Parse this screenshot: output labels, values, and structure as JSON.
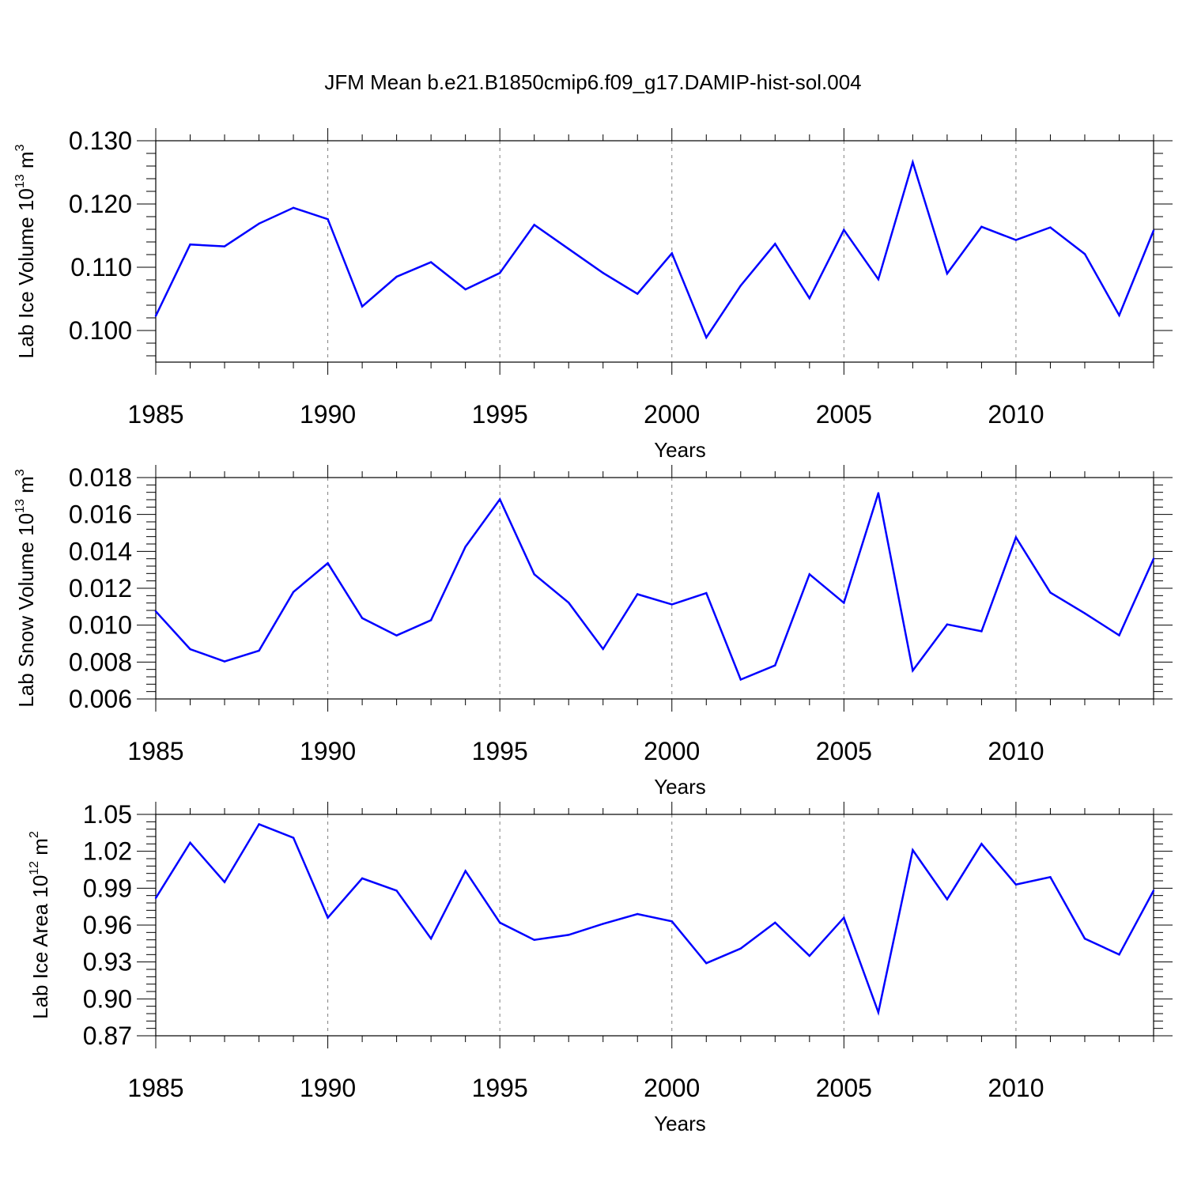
{
  "title": "JFM Mean b.e21.B1850cmip6.f09_g17.DAMIP-hist-sol.004",
  "colors": {
    "series": "#0000ff",
    "axis": "#000000",
    "grid": "#808080"
  },
  "chart_data": [
    {
      "type": "line",
      "ylabel_main": "Lab Ice Volume 10",
      "ylabel_exp": "13",
      "ylabel_unit": " m",
      "ylabel_unit_exp": "3",
      "xlabel": "Years",
      "xlim": [
        1985,
        2014
      ],
      "ylim": [
        0.095,
        0.13
      ],
      "yticks": [
        0.1,
        0.11,
        0.12,
        0.13
      ],
      "ytick_labels": [
        "0.100",
        "0.110",
        "0.120",
        "0.130"
      ],
      "xticks": [
        1985,
        1990,
        1995,
        2000,
        2005,
        2010
      ],
      "xtick_labels": [
        "1985",
        "1990",
        "1995",
        "2000",
        "2005",
        "2010"
      ],
      "grid": "vertical dashed at major x ticks",
      "x": [
        1985,
        1986,
        1987,
        1988,
        1989,
        1990,
        1991,
        1992,
        1993,
        1994,
        1995,
        1996,
        1997,
        1998,
        1999,
        2000,
        2001,
        2002,
        2003,
        2004,
        2005,
        2006,
        2007,
        2008,
        2009,
        2010,
        2011,
        2012,
        2013,
        2014
      ],
      "values": [
        0.1023,
        0.1136,
        0.1133,
        0.1169,
        0.1194,
        0.1176,
        0.1038,
        0.1085,
        0.1108,
        0.1065,
        0.1091,
        0.1167,
        0.1129,
        0.1091,
        0.1058,
        0.1122,
        0.0989,
        0.1071,
        0.1137,
        0.1051,
        0.1159,
        0.1081,
        0.1266,
        0.109,
        0.1164,
        0.1143,
        0.1163,
        0.1121,
        0.1024,
        0.1158
      ]
    },
    {
      "type": "line",
      "ylabel_main": "Lab Snow Volume 10",
      "ylabel_exp": "13",
      "ylabel_unit": " m",
      "ylabel_unit_exp": "3",
      "xlabel": "Years",
      "xlim": [
        1985,
        2014
      ],
      "ylim": [
        0.006,
        0.018
      ],
      "yticks": [
        0.006,
        0.008,
        0.01,
        0.012,
        0.014,
        0.016,
        0.018
      ],
      "ytick_labels": [
        "0.006",
        "0.008",
        "0.010",
        "0.012",
        "0.014",
        "0.016",
        "0.018"
      ],
      "xticks": [
        1985,
        1990,
        1995,
        2000,
        2005,
        2010
      ],
      "xtick_labels": [
        "1985",
        "1990",
        "1995",
        "2000",
        "2005",
        "2010"
      ],
      "grid": "vertical dashed at major x ticks",
      "x": [
        1985,
        1986,
        1987,
        1988,
        1989,
        1990,
        1991,
        1992,
        1993,
        1994,
        1995,
        1996,
        1997,
        1998,
        1999,
        2000,
        2001,
        2002,
        2003,
        2004,
        2005,
        2006,
        2007,
        2008,
        2009,
        2010,
        2011,
        2012,
        2013,
        2014
      ],
      "values": [
        0.01075,
        0.0087,
        0.00803,
        0.00862,
        0.0118,
        0.01336,
        0.01038,
        0.00944,
        0.01027,
        0.01425,
        0.01682,
        0.01276,
        0.01122,
        0.00871,
        0.01168,
        0.01112,
        0.01174,
        0.00705,
        0.00782,
        0.01276,
        0.01121,
        0.01716,
        0.00754,
        0.01004,
        0.00967,
        0.01476,
        0.01177,
        0.01064,
        0.00945,
        0.0136
      ]
    },
    {
      "type": "line",
      "ylabel_main": "Lab Ice Area 10",
      "ylabel_exp": "12",
      "ylabel_unit": " m",
      "ylabel_unit_exp": "2",
      "xlabel": "Years",
      "xlim": [
        1985,
        2014
      ],
      "ylim": [
        0.87,
        1.05
      ],
      "yticks": [
        0.87,
        0.9,
        0.93,
        0.96,
        0.99,
        1.02,
        1.05
      ],
      "ytick_labels": [
        "0.87",
        "0.90",
        "0.93",
        "0.96",
        "0.99",
        "1.02",
        "1.05"
      ],
      "xticks": [
        1985,
        1990,
        1995,
        2000,
        2005,
        2010
      ],
      "xtick_labels": [
        "1985",
        "1990",
        "1995",
        "2000",
        "2005",
        "2010"
      ],
      "grid": "vertical dashed at major x ticks",
      "x": [
        1985,
        1986,
        1987,
        1988,
        1989,
        1990,
        1991,
        1992,
        1993,
        1994,
        1995,
        1996,
        1997,
        1998,
        1999,
        2000,
        2001,
        2002,
        2003,
        2004,
        2005,
        2006,
        2007,
        2008,
        2009,
        2010,
        2011,
        2012,
        2013,
        2014
      ],
      "values": [
        0.982,
        1.027,
        0.995,
        1.042,
        1.031,
        0.966,
        0.998,
        0.988,
        0.949,
        1.004,
        0.962,
        0.948,
        0.952,
        0.961,
        0.969,
        0.963,
        0.929,
        0.941,
        0.962,
        0.935,
        0.966,
        0.889,
        1.021,
        0.981,
        1.026,
        0.993,
        0.999,
        0.949,
        0.936,
        0.988
      ]
    }
  ]
}
